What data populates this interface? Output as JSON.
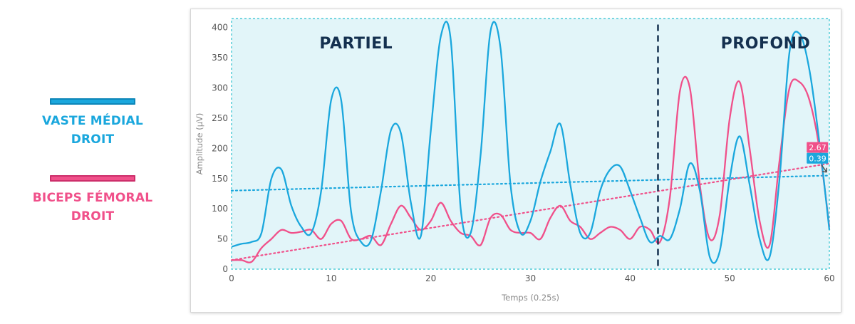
{
  "colors": {
    "vaste_medial": "#1aa7dd",
    "biceps_femoral": "#f0508a",
    "plot_bg": "#e2f5f9",
    "phase_text": "#14304f"
  },
  "legend": [
    {
      "name": "VASTE MÉDIAL\nDROIT",
      "color": "#1aa7dd"
    },
    {
      "name": "BICEPS FÉMORAL\nDROIT",
      "color": "#f0508a"
    }
  ],
  "chart_data": {
    "type": "line",
    "xlabel": "Temps (0.25s)",
    "ylabel": "Amplitude (µV)",
    "xlim": [
      0,
      60
    ],
    "ylim": [
      0,
      415
    ],
    "xticks": [
      0,
      10,
      20,
      30,
      40,
      50,
      60
    ],
    "yticks": [
      0,
      50,
      100,
      150,
      200,
      250,
      300,
      350,
      400
    ],
    "annotations": [
      {
        "text": "PARTIEL",
        "x": 12.5,
        "y": 375
      },
      {
        "text": "PROFOND",
        "x": 53.6,
        "y": 375
      }
    ],
    "divider_x": 42.8,
    "series": [
      {
        "legend_index": 0,
        "color": "#1aa7dd",
        "x": [
          0,
          1,
          2,
          3,
          4,
          5,
          6,
          7,
          8,
          9,
          10,
          11,
          12,
          13,
          14,
          15,
          16,
          17,
          18,
          19,
          20,
          21,
          22,
          23,
          24,
          25,
          26,
          27,
          28,
          29,
          30,
          31,
          32,
          33,
          34,
          35,
          36,
          37,
          38,
          39,
          40,
          41,
          42,
          43,
          44,
          45,
          46,
          47,
          48,
          49,
          50,
          51,
          52,
          53,
          54,
          55,
          56,
          57,
          58,
          59,
          60
        ],
        "values": [
          37,
          42,
          45,
          60,
          150,
          165,
          105,
          70,
          60,
          130,
          280,
          280,
          95,
          45,
          48,
          130,
          230,
          225,
          110,
          55,
          230,
          385,
          380,
          100,
          60,
          190,
          395,
          365,
          140,
          60,
          80,
          145,
          195,
          240,
          140,
          60,
          60,
          130,
          165,
          170,
          130,
          85,
          45,
          55,
          50,
          100,
          175,
          130,
          20,
          30,
          150,
          220,
          140,
          50,
          20,
          150,
          360,
          390,
          330,
          210,
          65
        ]
      },
      {
        "legend_index": 1,
        "color": "#f0508a",
        "x": [
          0,
          1,
          2,
          3,
          4,
          5,
          6,
          7,
          8,
          9,
          10,
          11,
          12,
          13,
          14,
          15,
          16,
          17,
          18,
          19,
          20,
          21,
          22,
          23,
          24,
          25,
          26,
          27,
          28,
          29,
          30,
          31,
          32,
          33,
          34,
          35,
          36,
          37,
          38,
          39,
          40,
          41,
          42,
          43,
          44,
          45,
          46,
          47,
          48,
          49,
          50,
          51,
          52,
          53,
          54,
          55,
          56,
          57,
          58,
          59,
          60
        ],
        "values": [
          15,
          15,
          12,
          35,
          50,
          65,
          60,
          62,
          65,
          50,
          75,
          80,
          50,
          50,
          55,
          40,
          75,
          105,
          85,
          65,
          80,
          110,
          80,
          60,
          55,
          40,
          85,
          90,
          65,
          60,
          60,
          50,
          85,
          105,
          80,
          70,
          50,
          60,
          70,
          65,
          50,
          70,
          65,
          45,
          120,
          295,
          300,
          140,
          50,
          90,
          250,
          310,
          200,
          80,
          40,
          180,
          300,
          310,
          280,
          200,
          70
        ]
      }
    ],
    "trendlines": [
      {
        "series_index": 0,
        "color": "#1aa7dd",
        "x": [
          0,
          60
        ],
        "y": [
          130,
          155
        ]
      },
      {
        "series_index": 1,
        "color": "#f0508a",
        "x": [
          0,
          60
        ],
        "y": [
          15,
          175
        ]
      }
    ],
    "hover_labels": [
      {
        "text": "2.67",
        "color": "#f0508a",
        "x": 58.8,
        "y": 201
      },
      {
        "text": "0.39",
        "color": "#1aa7dd",
        "x": 58.8,
        "y": 183
      }
    ]
  }
}
